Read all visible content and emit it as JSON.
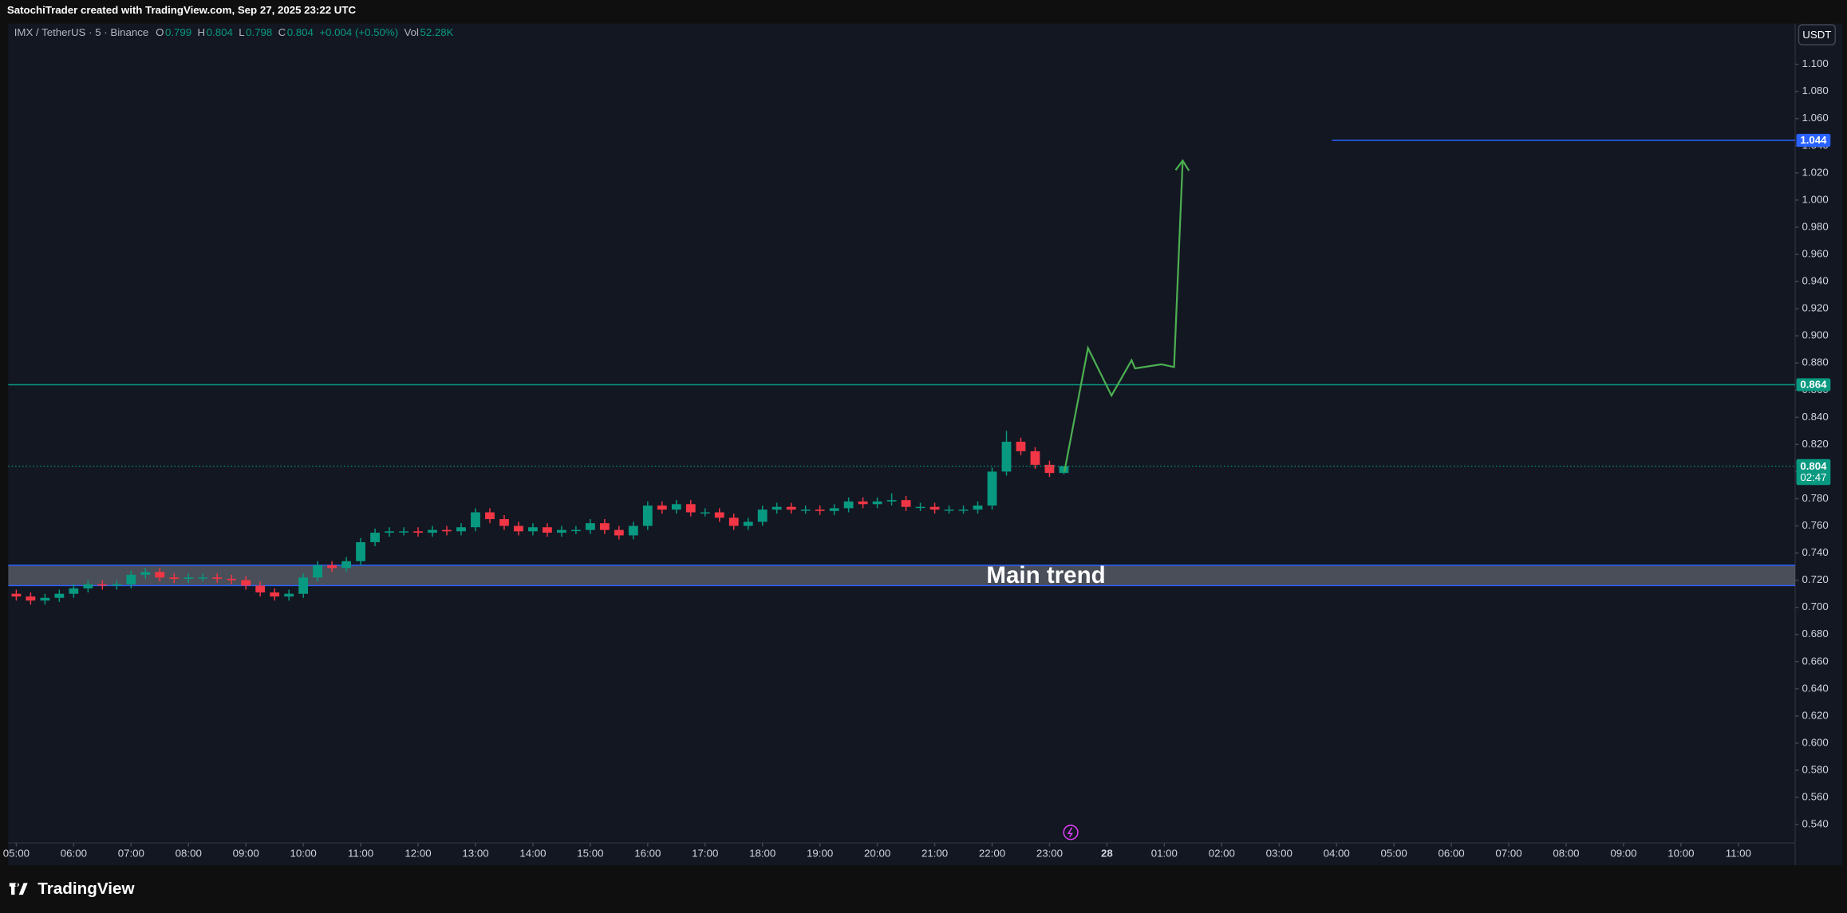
{
  "header": "SatochiTrader created with TradingView.com, Sep 27, 2025 23:22 UTC",
  "brand": "TradingView",
  "currency_button": "USDT",
  "chart_data": {
    "type": "candlestick",
    "symbol": "IMX / TetherUS · 5 · Binance",
    "ohlc_legend": [
      {
        "label": "O",
        "value": 0.799
      },
      {
        "label": "H",
        "value": 0.804
      },
      {
        "label": "L",
        "value": 0.798
      },
      {
        "label": "C",
        "value": 0.804
      }
    ],
    "change": "+0.004 (+0.50%)",
    "volume_label": "Vol",
    "volume": "52.28K",
    "up_color": "#089981",
    "down_color": "#f23645",
    "grid": false,
    "x": [
      5,
      5.25,
      5.5,
      5.75,
      6,
      6.25,
      6.5,
      6.75,
      7,
      7.25,
      7.5,
      7.75,
      8,
      8.25,
      8.5,
      8.75,
      9,
      9.25,
      9.5,
      9.75,
      10,
      10.25,
      10.5,
      10.75,
      11,
      11.25,
      11.5,
      11.75,
      12,
      12.25,
      12.5,
      12.75,
      13,
      13.25,
      13.5,
      13.75,
      14,
      14.25,
      14.5,
      14.75,
      15,
      15.25,
      15.5,
      15.75,
      16,
      16.25,
      16.5,
      16.75,
      17,
      17.25,
      17.5,
      17.75,
      18,
      18.25,
      18.5,
      18.75,
      19,
      19.25,
      19.5,
      19.75,
      20,
      20.25,
      20.5,
      20.75,
      21,
      21.25,
      21.5,
      21.75,
      22,
      22.25,
      22.5,
      22.75,
      23,
      23.25
    ],
    "open": [
      0.71,
      0.708,
      0.705,
      0.707,
      0.71,
      0.714,
      0.717,
      0.716,
      0.717,
      0.724,
      0.726,
      0.722,
      0.721,
      0.722,
      0.722,
      0.721,
      0.72,
      0.716,
      0.711,
      0.708,
      0.71,
      0.722,
      0.731,
      0.729,
      0.734,
      0.748,
      0.755,
      0.756,
      0.756,
      0.755,
      0.757,
      0.756,
      0.759,
      0.77,
      0.765,
      0.76,
      0.756,
      0.759,
      0.755,
      0.757,
      0.757,
      0.762,
      0.757,
      0.753,
      0.76,
      0.775,
      0.772,
      0.776,
      0.77,
      0.77,
      0.766,
      0.76,
      0.763,
      0.772,
      0.774,
      0.772,
      0.772,
      0.771,
      0.773,
      0.778,
      0.776,
      0.778,
      0.779,
      0.774,
      0.774,
      0.772,
      0.772,
      0.772,
      0.775,
      0.8,
      0.822,
      0.815,
      0.805,
      0.799
    ],
    "high": [
      0.713,
      0.711,
      0.71,
      0.713,
      0.717,
      0.72,
      0.72,
      0.72,
      0.727,
      0.729,
      0.729,
      0.725,
      0.725,
      0.725,
      0.725,
      0.724,
      0.723,
      0.719,
      0.714,
      0.713,
      0.725,
      0.734,
      0.734,
      0.737,
      0.751,
      0.758,
      0.759,
      0.759,
      0.759,
      0.76,
      0.76,
      0.762,
      0.773,
      0.773,
      0.768,
      0.763,
      0.762,
      0.762,
      0.76,
      0.76,
      0.765,
      0.765,
      0.76,
      0.763,
      0.778,
      0.778,
      0.779,
      0.779,
      0.773,
      0.773,
      0.769,
      0.766,
      0.775,
      0.777,
      0.777,
      0.775,
      0.775,
      0.776,
      0.781,
      0.781,
      0.781,
      0.784,
      0.782,
      0.777,
      0.777,
      0.775,
      0.775,
      0.778,
      0.803,
      0.83,
      0.825,
      0.818,
      0.808,
      0.804
    ],
    "low": [
      0.705,
      0.702,
      0.702,
      0.704,
      0.707,
      0.711,
      0.713,
      0.713,
      0.714,
      0.721,
      0.719,
      0.718,
      0.718,
      0.719,
      0.718,
      0.717,
      0.713,
      0.708,
      0.705,
      0.705,
      0.707,
      0.719,
      0.726,
      0.726,
      0.731,
      0.745,
      0.752,
      0.753,
      0.752,
      0.752,
      0.753,
      0.753,
      0.756,
      0.762,
      0.757,
      0.753,
      0.753,
      0.752,
      0.752,
      0.754,
      0.754,
      0.754,
      0.75,
      0.75,
      0.757,
      0.769,
      0.769,
      0.767,
      0.767,
      0.763,
      0.757,
      0.757,
      0.76,
      0.769,
      0.769,
      0.769,
      0.768,
      0.768,
      0.77,
      0.773,
      0.773,
      0.775,
      0.771,
      0.771,
      0.769,
      0.769,
      0.769,
      0.769,
      0.772,
      0.797,
      0.812,
      0.802,
      0.796,
      0.798
    ],
    "close": [
      0.708,
      0.705,
      0.707,
      0.71,
      0.714,
      0.717,
      0.716,
      0.717,
      0.724,
      0.726,
      0.722,
      0.721,
      0.722,
      0.722,
      0.721,
      0.72,
      0.716,
      0.711,
      0.708,
      0.71,
      0.722,
      0.731,
      0.729,
      0.734,
      0.748,
      0.755,
      0.756,
      0.756,
      0.755,
      0.757,
      0.756,
      0.759,
      0.77,
      0.765,
      0.76,
      0.756,
      0.759,
      0.755,
      0.757,
      0.757,
      0.762,
      0.757,
      0.753,
      0.76,
      0.775,
      0.772,
      0.776,
      0.77,
      0.77,
      0.766,
      0.76,
      0.763,
      0.772,
      0.774,
      0.772,
      0.772,
      0.771,
      0.773,
      0.778,
      0.776,
      0.778,
      0.779,
      0.774,
      0.774,
      0.772,
      0.772,
      0.772,
      0.775,
      0.8,
      0.822,
      0.815,
      0.805,
      0.799,
      0.804
    ],
    "xlim": [
      4.86,
      35.99
    ],
    "xticks": [
      {
        "value": 5,
        "label": "05:00"
      },
      {
        "value": 6,
        "label": "06:00"
      },
      {
        "value": 7,
        "label": "07:00"
      },
      {
        "value": 8,
        "label": "08:00"
      },
      {
        "value": 9,
        "label": "09:00"
      },
      {
        "value": 10,
        "label": "10:00"
      },
      {
        "value": 11,
        "label": "11:00"
      },
      {
        "value": 12,
        "label": "12:00"
      },
      {
        "value": 13,
        "label": "13:00"
      },
      {
        "value": 14,
        "label": "14:00"
      },
      {
        "value": 15,
        "label": "15:00"
      },
      {
        "value": 16,
        "label": "16:00"
      },
      {
        "value": 17,
        "label": "17:00"
      },
      {
        "value": 18,
        "label": "18:00"
      },
      {
        "value": 19,
        "label": "19:00"
      },
      {
        "value": 20,
        "label": "20:00"
      },
      {
        "value": 21,
        "label": "21:00"
      },
      {
        "value": 22,
        "label": "22:00"
      },
      {
        "value": 23,
        "label": "23:00"
      },
      {
        "value": 24,
        "label": "28"
      },
      {
        "value": 25,
        "label": "01:00"
      },
      {
        "value": 26,
        "label": "02:00"
      },
      {
        "value": 27,
        "label": "03:00"
      },
      {
        "value": 28,
        "label": "04:00"
      },
      {
        "value": 29,
        "label": "05:00"
      },
      {
        "value": 30,
        "label": "06:00"
      },
      {
        "value": 31,
        "label": "07:00"
      },
      {
        "value": 32,
        "label": "08:00"
      },
      {
        "value": 33,
        "label": "09:00"
      },
      {
        "value": 34,
        "label": "10:00"
      },
      {
        "value": 35,
        "label": "11:00"
      }
    ],
    "ylim": [
      0.51,
      1.13
    ],
    "yticks": [
      {
        "value": 0.54,
        "label": "0.540"
      },
      {
        "value": 0.56,
        "label": "0.560"
      },
      {
        "value": 0.58,
        "label": "0.580"
      },
      {
        "value": 0.6,
        "label": "0.600"
      },
      {
        "value": 0.62,
        "label": "0.620"
      },
      {
        "value": 0.64,
        "label": "0.640"
      },
      {
        "value": 0.66,
        "label": "0.660"
      },
      {
        "value": 0.68,
        "label": "0.680"
      },
      {
        "value": 0.7,
        "label": "0.700"
      },
      {
        "value": 0.72,
        "label": "0.720"
      },
      {
        "value": 0.74,
        "label": "0.740"
      },
      {
        "value": 0.76,
        "label": "0.760"
      },
      {
        "value": 0.78,
        "label": "0.780"
      },
      {
        "value": 0.8,
        "label": "0.800"
      },
      {
        "value": 0.82,
        "label": "0.820"
      },
      {
        "value": 0.84,
        "label": "0.840"
      },
      {
        "value": 0.86,
        "label": "0.860"
      },
      {
        "value": 0.88,
        "label": "0.880"
      },
      {
        "value": 0.9,
        "label": "0.900"
      },
      {
        "value": 0.92,
        "label": "0.920"
      },
      {
        "value": 0.94,
        "label": "0.940"
      },
      {
        "value": 0.96,
        "label": "0.960"
      },
      {
        "value": 0.98,
        "label": "0.980"
      },
      {
        "value": 1.0,
        "label": "1.000"
      },
      {
        "value": 1.02,
        "label": "1.020"
      },
      {
        "value": 1.04,
        "label": "1.040"
      },
      {
        "value": 1.06,
        "label": "1.060"
      },
      {
        "value": 1.08,
        "label": "1.080"
      },
      {
        "value": 1.1,
        "label": "1.100"
      }
    ],
    "levels": [
      {
        "value": 1.044,
        "label": "1.044",
        "color": "#2962ff",
        "x_start": 27.92
      },
      {
        "value": 0.864,
        "label": "0.864",
        "color": "#089981"
      }
    ],
    "last_price": {
      "value": 0.804,
      "label": "0.804",
      "countdown": "02:47"
    },
    "zone": {
      "low": 0.716,
      "high": 0.731,
      "label": "Main trend",
      "color": "#2962ff"
    },
    "projection": {
      "color": "#4caf50",
      "x": [
        23.26,
        23.67,
        24.08,
        24.43,
        24.49,
        24.95,
        25.17,
        25.32
      ],
      "y": [
        0.8,
        0.891,
        0.856,
        0.882,
        0.876,
        0.879,
        0.877,
        1.029
      ]
    }
  }
}
